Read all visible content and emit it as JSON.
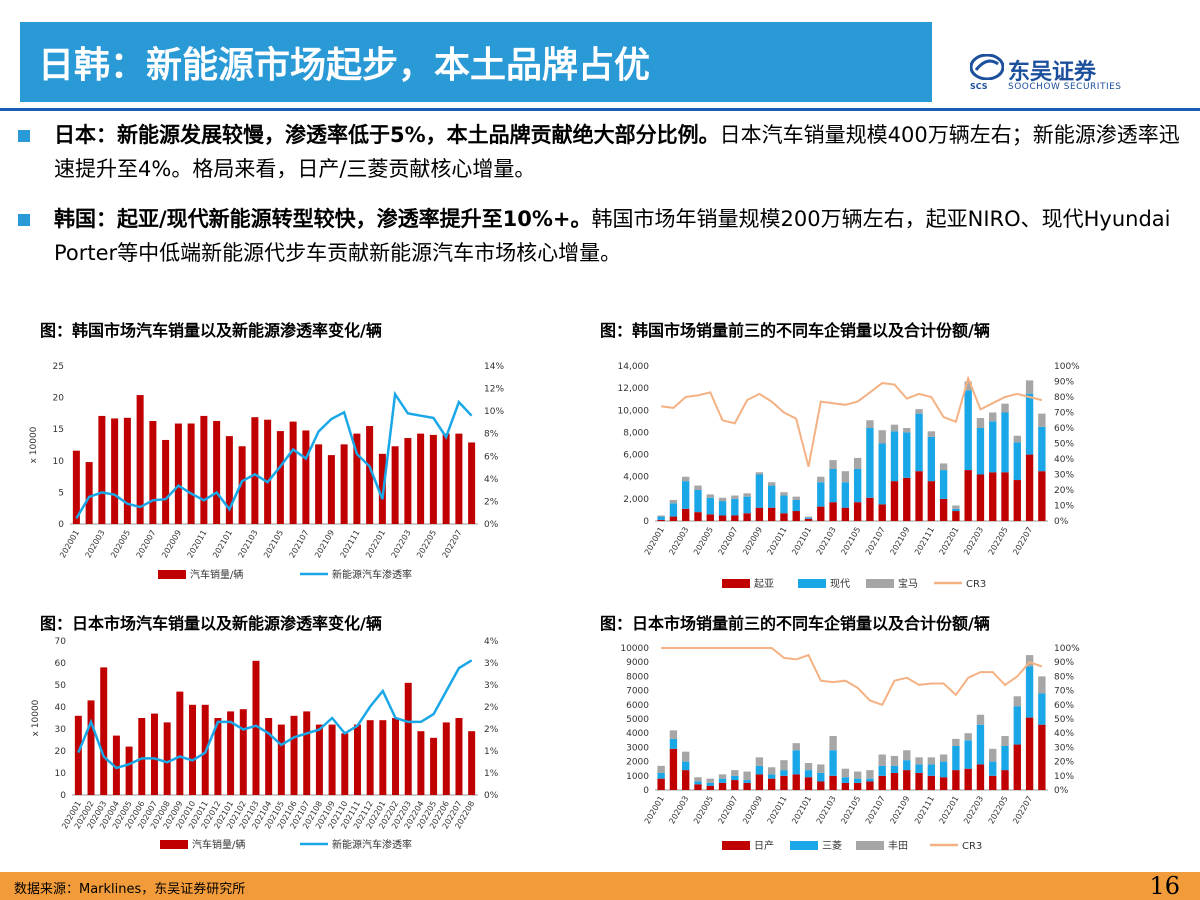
{
  "header": {
    "title": "日韩：新能源市场起步，本土品牌占优"
  },
  "logo": {
    "cn": "东吴证券",
    "en": "SOOCHOW SECURITIES",
    "mark": "SCS"
  },
  "bullets": [
    {
      "bold": "日本：新能源发展较慢，渗透率低于5%，本土品牌贡献绝大部分比例。",
      "text": "日本汽车销量规模400万辆左右；新能源渗透率迅速提升至4%。格局来看，日产/三菱贡献核心增量。"
    },
    {
      "bold": "韩国：起亚/现代新能源转型较快，渗透率提升至10%+。",
      "text": "韩国市场年销量规模200万辆左右，起亚NIRO、现代Hyundai Porter等中低端新能源代步车贡献新能源汽车市场核心增量。"
    }
  ],
  "footer": {
    "source": "数据来源：Marklines，东吴证券研究所",
    "page": "16"
  },
  "colors": {
    "accent": "#2a9ad6",
    "bar_red": "#c00000",
    "line_blue": "#1aa7e8",
    "gray": "#a6a6a6",
    "orange": "#f4b183",
    "footer": "#f29b3a"
  },
  "chart_data": [
    {
      "id": "kr_sales",
      "type": "bar",
      "title": "图：韩国市场汽车销量以及新能源渗透率变化/辆",
      "ylabel": "x 10000",
      "ylim": [
        0,
        25
      ],
      "y2lim": [
        0,
        0.14
      ],
      "y_ticks": [
        "0",
        "5",
        "10",
        "15",
        "20",
        "25"
      ],
      "y2_ticks": [
        "0%",
        "2%",
        "4%",
        "6%",
        "8%",
        "10%",
        "12%",
        "14%"
      ],
      "x_tick_labels": [
        "202001",
        "202003",
        "202005",
        "202007",
        "202009",
        "202011",
        "202101",
        "202103",
        "202105",
        "202107",
        "202109",
        "202111",
        "202201",
        "202203",
        "202205",
        "202207"
      ],
      "categories": [
        "202001",
        "202002",
        "202003",
        "202004",
        "202005",
        "202006",
        "202007",
        "202008",
        "202009",
        "202010",
        "202011",
        "202012",
        "202101",
        "202102",
        "202103",
        "202104",
        "202105",
        "202106",
        "202107",
        "202108",
        "202109",
        "202110",
        "202111",
        "202112",
        "202201",
        "202202",
        "202203",
        "202204",
        "202205",
        "202206",
        "202207",
        "202208"
      ],
      "series": [
        {
          "name": "汽车销量/辆",
          "kind": "bar",
          "axis": "left",
          "values": [
            11.6,
            9.8,
            17.1,
            16.7,
            16.8,
            20.4,
            16.3,
            13.3,
            15.9,
            15.9,
            17.1,
            16.3,
            13.9,
            12.3,
            16.9,
            16.5,
            14.7,
            16.2,
            14.8,
            12.6,
            10.9,
            12.6,
            14.3,
            15.5,
            11.1,
            12.3,
            13.6,
            14.3,
            14.1,
            14.3,
            14.3,
            12.9
          ]
        },
        {
          "name": "新能源汽车渗透率",
          "kind": "line",
          "axis": "right",
          "values": [
            0.005,
            0.024,
            0.028,
            0.026,
            0.018,
            0.015,
            0.021,
            0.022,
            0.034,
            0.027,
            0.021,
            0.028,
            0.013,
            0.038,
            0.044,
            0.037,
            0.051,
            0.066,
            0.058,
            0.082,
            0.093,
            0.099,
            0.062,
            0.051,
            0.022,
            0.115,
            0.098,
            0.096,
            0.094,
            0.077,
            0.108,
            0.096
          ]
        }
      ]
    },
    {
      "id": "kr_brands",
      "type": "bar",
      "title": "图：韩国市场销量前三的不同车企销量以及合计份额/辆",
      "ylim": [
        0,
        14000
      ],
      "y2lim": [
        0,
        1
      ],
      "y_ticks": [
        "0",
        "2,000",
        "4,000",
        "6,000",
        "8,000",
        "10,000",
        "12,000",
        "14,000"
      ],
      "y2_ticks": [
        "0%",
        "10%",
        "20%",
        "30%",
        "40%",
        "50%",
        "60%",
        "70%",
        "80%",
        "90%",
        "100%"
      ],
      "x_tick_labels": [
        "202001",
        "202003",
        "202005",
        "202007",
        "202009",
        "202011",
        "202101",
        "202103",
        "202105",
        "202107",
        "202109",
        "202111",
        "202201",
        "202203",
        "202205",
        "202207"
      ],
      "categories": [
        "202001",
        "202002",
        "202003",
        "202004",
        "202005",
        "202006",
        "202007",
        "202008",
        "202009",
        "202010",
        "202011",
        "202012",
        "202101",
        "202102",
        "202103",
        "202104",
        "202105",
        "202106",
        "202107",
        "202108",
        "202109",
        "202110",
        "202111",
        "202112",
        "202201",
        "202202",
        "202203",
        "202204",
        "202205",
        "202206",
        "202207",
        "202208"
      ],
      "series": [
        {
          "name": "起亚",
          "kind": "bar",
          "values": [
            100,
            400,
            1100,
            800,
            600,
            500,
            500,
            700,
            1200,
            1200,
            700,
            900,
            200,
            1300,
            1700,
            1200,
            1700,
            2100,
            1500,
            3600,
            3900,
            4500,
            3600,
            2000,
            900,
            4600,
            4200,
            4400,
            4400,
            3700,
            6000,
            4500
          ]
        },
        {
          "name": "现代",
          "kind": "bar",
          "values": [
            300,
            1200,
            2500,
            2000,
            1500,
            1300,
            1500,
            1500,
            3000,
            2000,
            1600,
            1000,
            100,
            2200,
            3000,
            2300,
            3000,
            6300,
            5500,
            4500,
            4100,
            5200,
            4000,
            2600,
            200,
            7200,
            4200,
            4600,
            5400,
            3400,
            5500,
            4000
          ]
        },
        {
          "name": "宝马",
          "kind": "bar",
          "values": [
            100,
            300,
            400,
            400,
            300,
            300,
            300,
            300,
            200,
            300,
            300,
            300,
            100,
            500,
            800,
            1000,
            1000,
            700,
            1200,
            600,
            400,
            400,
            500,
            600,
            300,
            800,
            900,
            800,
            800,
            600,
            1200,
            1200
          ]
        },
        {
          "name": "CR3",
          "kind": "line",
          "axis": "right",
          "values": [
            0.74,
            0.73,
            0.8,
            0.81,
            0.83,
            0.65,
            0.63,
            0.78,
            0.82,
            0.77,
            0.7,
            0.66,
            0.35,
            0.77,
            0.76,
            0.75,
            0.77,
            0.83,
            0.89,
            0.88,
            0.79,
            0.82,
            0.8,
            0.67,
            0.64,
            0.92,
            0.72,
            0.76,
            0.8,
            0.82,
            0.8,
            0.78
          ]
        }
      ]
    },
    {
      "id": "jp_sales",
      "type": "bar",
      "title": "图：日本市场汽车销量以及新能源渗透率变化/辆",
      "ylabel": "x 10000",
      "ylim": [
        0,
        70
      ],
      "y2lim": [
        0,
        0.04
      ],
      "y_ticks": [
        "0",
        "10",
        "20",
        "30",
        "40",
        "50",
        "60",
        "70"
      ],
      "y2_ticks": [
        "0%",
        "1%",
        "1%",
        "2%",
        "2%",
        "3%",
        "3%",
        "4%"
      ],
      "x_tick_labels": [
        "202001",
        "202002",
        "202003",
        "202004",
        "202005",
        "202006",
        "202007",
        "202008",
        "202009",
        "202010",
        "202011",
        "202012",
        "202101",
        "202102",
        "202103",
        "202104",
        "202105",
        "202106",
        "202107",
        "202108",
        "202109",
        "202110",
        "202111",
        "202112",
        "202201",
        "202202",
        "202203",
        "202204",
        "202205",
        "202206",
        "202207",
        "202208"
      ],
      "categories": [
        "202001",
        "202002",
        "202003",
        "202004",
        "202005",
        "202006",
        "202007",
        "202008",
        "202009",
        "202010",
        "202011",
        "202012",
        "202101",
        "202102",
        "202103",
        "202104",
        "202105",
        "202106",
        "202107",
        "202108",
        "202109",
        "202110",
        "202111",
        "202112",
        "202201",
        "202202",
        "202203",
        "202204",
        "202205",
        "202206",
        "202207",
        "202208"
      ],
      "series": [
        {
          "name": "汽车销量/辆",
          "kind": "bar",
          "axis": "left",
          "values": [
            36,
            43,
            58,
            27,
            22,
            35,
            37,
            33,
            47,
            41,
            41,
            35,
            38,
            39,
            61,
            35,
            32,
            36,
            38,
            32,
            32,
            28,
            32,
            34,
            34,
            35,
            51,
            29,
            26,
            33,
            35,
            29
          ]
        },
        {
          "name": "新能源汽车渗透率",
          "kind": "line",
          "axis": "right",
          "values": [
            0.011,
            0.019,
            0.01,
            0.007,
            0.008,
            0.0095,
            0.0095,
            0.0085,
            0.01,
            0.009,
            0.011,
            0.019,
            0.019,
            0.017,
            0.018,
            0.016,
            0.013,
            0.015,
            0.016,
            0.017,
            0.02,
            0.016,
            0.018,
            0.023,
            0.027,
            0.02,
            0.019,
            0.019,
            0.021,
            0.027,
            0.033,
            0.035
          ]
        }
      ]
    },
    {
      "id": "jp_brands",
      "type": "bar",
      "title": "图：日本市场销量前三的不同车企销量以及合计份额/辆",
      "ylim": [
        0,
        10000
      ],
      "y2lim": [
        0,
        1
      ],
      "y_ticks": [
        "0",
        "1000",
        "2000",
        "3000",
        "4000",
        "5000",
        "6000",
        "7000",
        "8000",
        "9000",
        "10000"
      ],
      "y2_ticks": [
        "0%",
        "10%",
        "20%",
        "30%",
        "40%",
        "50%",
        "60%",
        "70%",
        "80%",
        "90%",
        "100%"
      ],
      "x_tick_labels": [
        "202001",
        "202003",
        "202005",
        "202007",
        "202009",
        "202011",
        "202101",
        "202103",
        "202105",
        "202107",
        "202109",
        "202111",
        "202201",
        "202203",
        "202205",
        "202207"
      ],
      "categories": [
        "202001",
        "202002",
        "202003",
        "202004",
        "202005",
        "202006",
        "202007",
        "202008",
        "202009",
        "202010",
        "202011",
        "202012",
        "202101",
        "202102",
        "202103",
        "202104",
        "202105",
        "202106",
        "202107",
        "202108",
        "202109",
        "202110",
        "202111",
        "202112",
        "202201",
        "202202",
        "202203",
        "202204",
        "202205",
        "202206",
        "202207",
        "202208"
      ],
      "series": [
        {
          "name": "日产",
          "kind": "bar",
          "values": [
            800,
            2900,
            1400,
            400,
            300,
            500,
            700,
            500,
            1100,
            800,
            1000,
            1100,
            900,
            600,
            1000,
            500,
            500,
            600,
            1000,
            1200,
            1400,
            1200,
            1000,
            900,
            1400,
            1500,
            1800,
            1000,
            1400,
            3200,
            5100,
            4600
          ]
        },
        {
          "name": "三菱",
          "kind": "bar",
          "values": [
            400,
            700,
            600,
            200,
            200,
            300,
            300,
            200,
            600,
            300,
            400,
            1700,
            500,
            600,
            1800,
            400,
            300,
            200,
            700,
            500,
            700,
            600,
            800,
            1100,
            1700,
            2000,
            2800,
            1000,
            1700,
            2700,
            3600,
            2200
          ]
        },
        {
          "name": "丰田",
          "kind": "bar",
          "values": [
            500,
            600,
            700,
            300,
            300,
            300,
            400,
            600,
            600,
            500,
            700,
            500,
            500,
            600,
            1000,
            600,
            500,
            600,
            800,
            700,
            700,
            500,
            500,
            500,
            500,
            500,
            700,
            900,
            700,
            700,
            800,
            1200
          ]
        },
        {
          "name": "CR3",
          "kind": "line",
          "axis": "right",
          "values": [
            1.0,
            1.0,
            1.0,
            1.0,
            1.0,
            1.0,
            1.0,
            1.0,
            1.0,
            1.0,
            0.93,
            0.92,
            0.95,
            0.77,
            0.76,
            0.77,
            0.72,
            0.63,
            0.6,
            0.77,
            0.79,
            0.74,
            0.75,
            0.75,
            0.67,
            0.79,
            0.83,
            0.83,
            0.74,
            0.8,
            0.9,
            0.87
          ]
        }
      ]
    }
  ]
}
